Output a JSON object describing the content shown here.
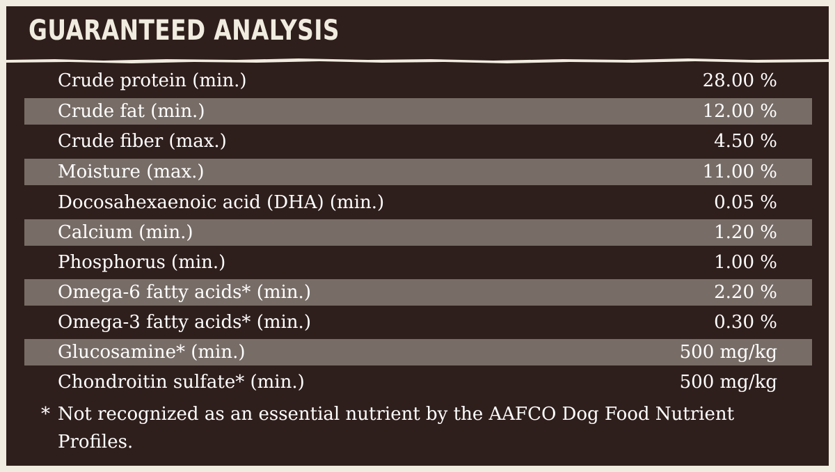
{
  "header": {
    "title": "GUARANTEED ANALYSIS"
  },
  "colors": {
    "background": "#2f1f1c",
    "shaded_row": "#776c66",
    "text": "#ffffff",
    "border": "#f1ece0"
  },
  "rows": [
    {
      "label": "Crude protein (min.)",
      "value": "28.00 %"
    },
    {
      "label": "Crude fat (min.)",
      "value": "12.00 %"
    },
    {
      "label": "Crude fiber (max.)",
      "value": "4.50 %"
    },
    {
      "label": "Moisture (max.)",
      "value": "11.00 %"
    },
    {
      "label": "Docosahexaenoic acid (DHA) (min.)",
      "value": "0.05 %"
    },
    {
      "label": "Calcium (min.)",
      "value": "1.20 %"
    },
    {
      "label": "Phosphorus (min.)",
      "value": "1.00 %"
    },
    {
      "label": "Omega-6 fatty acids* (min.)",
      "value": "2.20 %"
    },
    {
      "label": "Omega-3 fatty acids* (min.)",
      "value": "0.30 %"
    },
    {
      "label": "Glucosamine* (min.)",
      "value": "500 mg/kg"
    },
    {
      "label": "Chondroitin sulfate* (min.)",
      "value": "500 mg/kg"
    }
  ],
  "footnote": {
    "mark": "*",
    "text": "Not recognized as an essential nutrient by the AAFCO Dog Food Nutrient Profiles."
  }
}
